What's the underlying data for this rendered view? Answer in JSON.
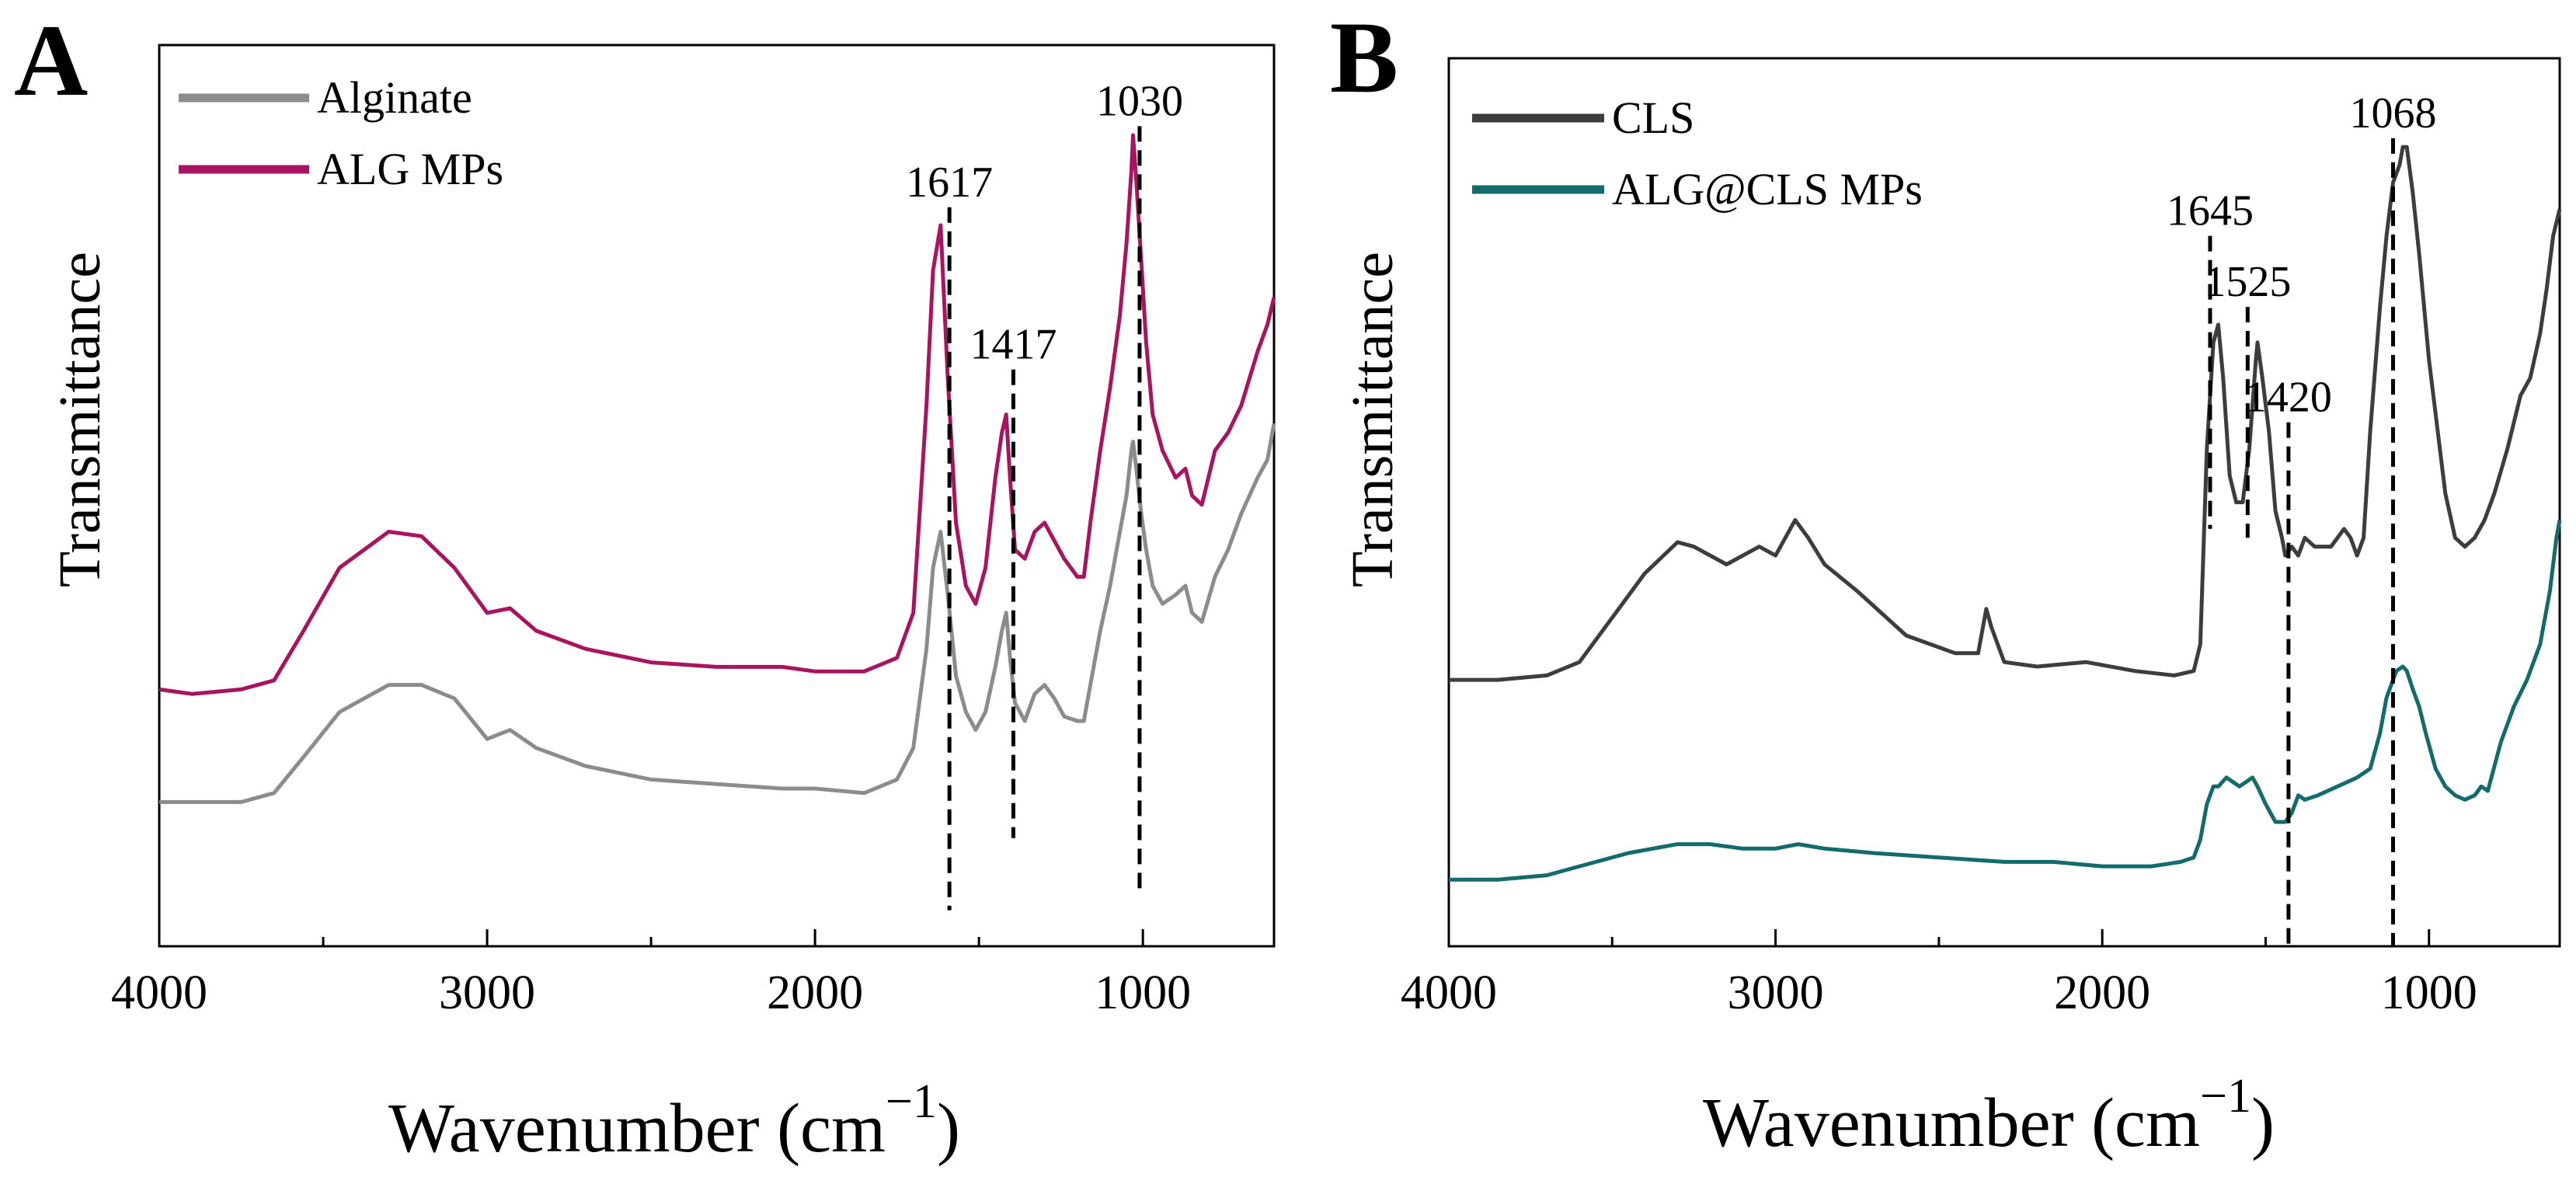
{
  "chart_data": [
    {
      "panel": "A",
      "type": "line",
      "xlabel": "Wavenumber (cm",
      "xlabel_sup": "−1",
      "xlabel_close": ")",
      "ylabel": "Transmittance",
      "xlim": [
        4000,
        600
      ],
      "ylim": [
        0,
        100
      ],
      "x_ticks": [
        4000,
        3000,
        2000,
        1000
      ],
      "tick_labels": [
        "4000",
        "3000",
        "2000",
        "1000"
      ],
      "legend": "top-left",
      "series": [
        {
          "name": "Alginate",
          "color": "#8c8c8c",
          "x": [
            4000,
            3900,
            3750,
            3650,
            3560,
            3450,
            3300,
            3200,
            3100,
            3000,
            2930,
            2850,
            2700,
            2500,
            2300,
            2100,
            2000,
            1850,
            1750,
            1700,
            1660,
            1640,
            1617,
            1595,
            1570,
            1540,
            1510,
            1480,
            1450,
            1430,
            1417,
            1405,
            1390,
            1360,
            1330,
            1300,
            1270,
            1240,
            1200,
            1180,
            1160,
            1130,
            1100,
            1070,
            1050,
            1035,
            1030,
            1020,
            1005,
            990,
            970,
            940,
            900,
            870,
            850,
            820,
            780,
            740,
            700,
            650,
            620,
            600
          ],
          "y": [
            16,
            16,
            16,
            17,
            21,
            26,
            29,
            29,
            27.5,
            23,
            24,
            22,
            20,
            18.5,
            18,
            17.5,
            17.5,
            17,
            18.5,
            22,
            33,
            42,
            46,
            39,
            30,
            26,
            24,
            26,
            31,
            35,
            37,
            32,
            27,
            25,
            28,
            29,
            27.5,
            25.5,
            25,
            25,
            29,
            35,
            40,
            46,
            50,
            55,
            56,
            53,
            48,
            44,
            40,
            38,
            39,
            40,
            37,
            36,
            41,
            44,
            48,
            52,
            54,
            58
          ]
        },
        {
          "name": "ALG MPs",
          "color": "#a8145f",
          "x": [
            4000,
            3900,
            3750,
            3650,
            3560,
            3450,
            3300,
            3200,
            3100,
            3000,
            2930,
            2850,
            2700,
            2500,
            2300,
            2100,
            2000,
            1850,
            1750,
            1700,
            1660,
            1640,
            1617,
            1595,
            1570,
            1540,
            1510,
            1480,
            1450,
            1430,
            1417,
            1405,
            1390,
            1360,
            1330,
            1300,
            1270,
            1240,
            1200,
            1180,
            1160,
            1130,
            1100,
            1070,
            1050,
            1035,
            1030,
            1020,
            1005,
            990,
            970,
            940,
            900,
            870,
            850,
            820,
            780,
            740,
            700,
            650,
            620,
            600
          ],
          "y": [
            28.5,
            28,
            28.5,
            29.5,
            35,
            42,
            46,
            45.5,
            42,
            37,
            37.5,
            35,
            33,
            31.5,
            31,
            31,
            30.5,
            30.5,
            32,
            37,
            60,
            75,
            80,
            63,
            47,
            40,
            38,
            42,
            52,
            57,
            59,
            52,
            44,
            43,
            46,
            47,
            45,
            43,
            41,
            41,
            47,
            55,
            62,
            70,
            78,
            86,
            90,
            85,
            76,
            67,
            59,
            55,
            52,
            53,
            50,
            49,
            55,
            57,
            60,
            66,
            69,
            72
          ]
        }
      ],
      "annotations": [
        {
          "label": "1617",
          "x": 1590,
          "top": 82,
          "bottom": 4
        },
        {
          "label": "1417",
          "x": 1395,
          "top": 64,
          "bottom": 12
        },
        {
          "label": "1030",
          "x": 1010,
          "top": 91,
          "bottom": 6
        }
      ]
    },
    {
      "panel": "B",
      "type": "line",
      "xlabel": "Wavenumber (cm",
      "xlabel_sup": "−1",
      "xlabel_close": ")",
      "ylabel": "Transmittance",
      "xlim": [
        4000,
        600
      ],
      "ylim": [
        0,
        100
      ],
      "x_ticks": [
        4000,
        3000,
        2000,
        1000
      ],
      "tick_labels": [
        "4000",
        "3000",
        "2000",
        "1000"
      ],
      "legend": "top-left",
      "series": [
        {
          "name": "CLS",
          "color": "#3d3d3d",
          "x": [
            4000,
            3850,
            3700,
            3600,
            3500,
            3400,
            3300,
            3250,
            3150,
            3050,
            3000,
            2940,
            2900,
            2850,
            2750,
            2600,
            2450,
            2380,
            2355,
            2340,
            2320,
            2300,
            2200,
            2050,
            1900,
            1780,
            1720,
            1700,
            1680,
            1660,
            1645,
            1630,
            1610,
            1590,
            1570,
            1550,
            1530,
            1525,
            1510,
            1490,
            1470,
            1450,
            1440,
            1420,
            1400,
            1380,
            1350,
            1300,
            1260,
            1240,
            1220,
            1200,
            1180,
            1150,
            1130,
            1110,
            1090,
            1080,
            1068,
            1050,
            1030,
            1000,
            970,
            950,
            920,
            890,
            860,
            830,
            800,
            760,
            720,
            690,
            660,
            640,
            620,
            600
          ],
          "y": [
            30,
            30,
            30.5,
            32,
            37,
            42,
            45.5,
            45,
            43,
            45,
            44,
            48,
            46,
            43,
            40,
            35,
            33,
            33,
            38,
            36,
            34,
            32,
            31.5,
            32,
            31,
            30.5,
            31,
            34,
            56,
            68,
            70,
            64,
            53,
            50,
            50,
            56,
            66,
            68,
            64,
            58,
            49,
            46,
            44,
            45,
            44,
            46,
            45,
            45,
            47,
            46,
            44,
            46,
            58,
            72,
            80,
            86,
            88,
            90,
            90,
            85,
            78,
            66,
            57,
            51,
            46,
            45,
            46,
            48,
            51,
            56,
            62,
            64,
            69,
            74,
            80,
            83
          ]
        },
        {
          "name": "ALG@CLS MPs",
          "color": "#136b6b",
          "x": [
            4000,
            3850,
            3700,
            3600,
            3450,
            3300,
            3200,
            3100,
            3000,
            2930,
            2850,
            2700,
            2500,
            2300,
            2150,
            2000,
            1850,
            1760,
            1720,
            1700,
            1680,
            1660,
            1645,
            1620,
            1580,
            1540,
            1525,
            1500,
            1470,
            1450,
            1440,
            1420,
            1400,
            1380,
            1340,
            1280,
            1220,
            1180,
            1150,
            1130,
            1100,
            1080,
            1068,
            1050,
            1030,
            1010,
            980,
            950,
            920,
            890,
            860,
            840,
            820,
            780,
            740,
            700,
            660,
            630,
            610,
            600
          ],
          "y": [
            7.5,
            7.5,
            8,
            9,
            10.5,
            11.5,
            11.5,
            11,
            11,
            11.5,
            11,
            10.5,
            10,
            9.5,
            9.5,
            9,
            9,
            9.5,
            10,
            12,
            16,
            18,
            18,
            19,
            18,
            19,
            18,
            16,
            14,
            14,
            14,
            15,
            17,
            16.5,
            17,
            18,
            19,
            20,
            24,
            28,
            31,
            31.5,
            31,
            29,
            27,
            24,
            20,
            18,
            17,
            16.5,
            17,
            18,
            17.5,
            23,
            27,
            30,
            34,
            40,
            46,
            48
          ]
        }
      ],
      "annotations": [
        {
          "label": "1645",
          "x": 1670,
          "top": 80,
          "bottom": 47
        },
        {
          "label": "1525",
          "x": 1555,
          "top": 72,
          "bottom": 46
        },
        {
          "label": "1420",
          "x": 1430,
          "top": 59,
          "bottom": 0
        },
        {
          "label": "1068",
          "x": 1110,
          "top": 91,
          "bottom": 0
        }
      ]
    }
  ]
}
